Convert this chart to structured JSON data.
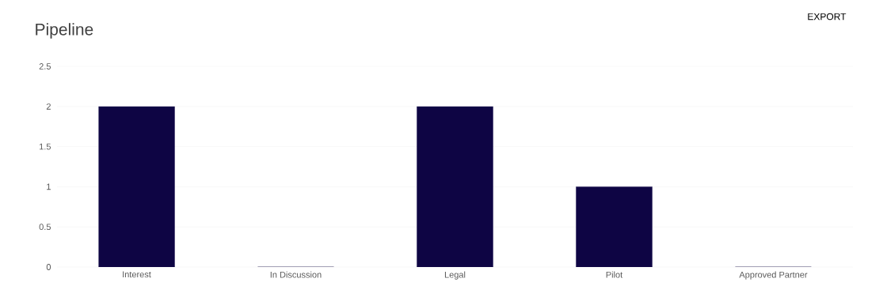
{
  "chart_data": {
    "type": "bar",
    "title": "Pipeline",
    "categories": [
      "Interest",
      "In Discussion",
      "Legal",
      "Pilot",
      "Approved Partner"
    ],
    "values": [
      2,
      0,
      2,
      1,
      0
    ],
    "color": "#0e0544",
    "ylim": [
      0,
      2.5
    ],
    "yticks": [
      0,
      0.5,
      1,
      1.5,
      2,
      2.5
    ],
    "grid": "y",
    "annotations": [
      "EXPORT"
    ]
  }
}
